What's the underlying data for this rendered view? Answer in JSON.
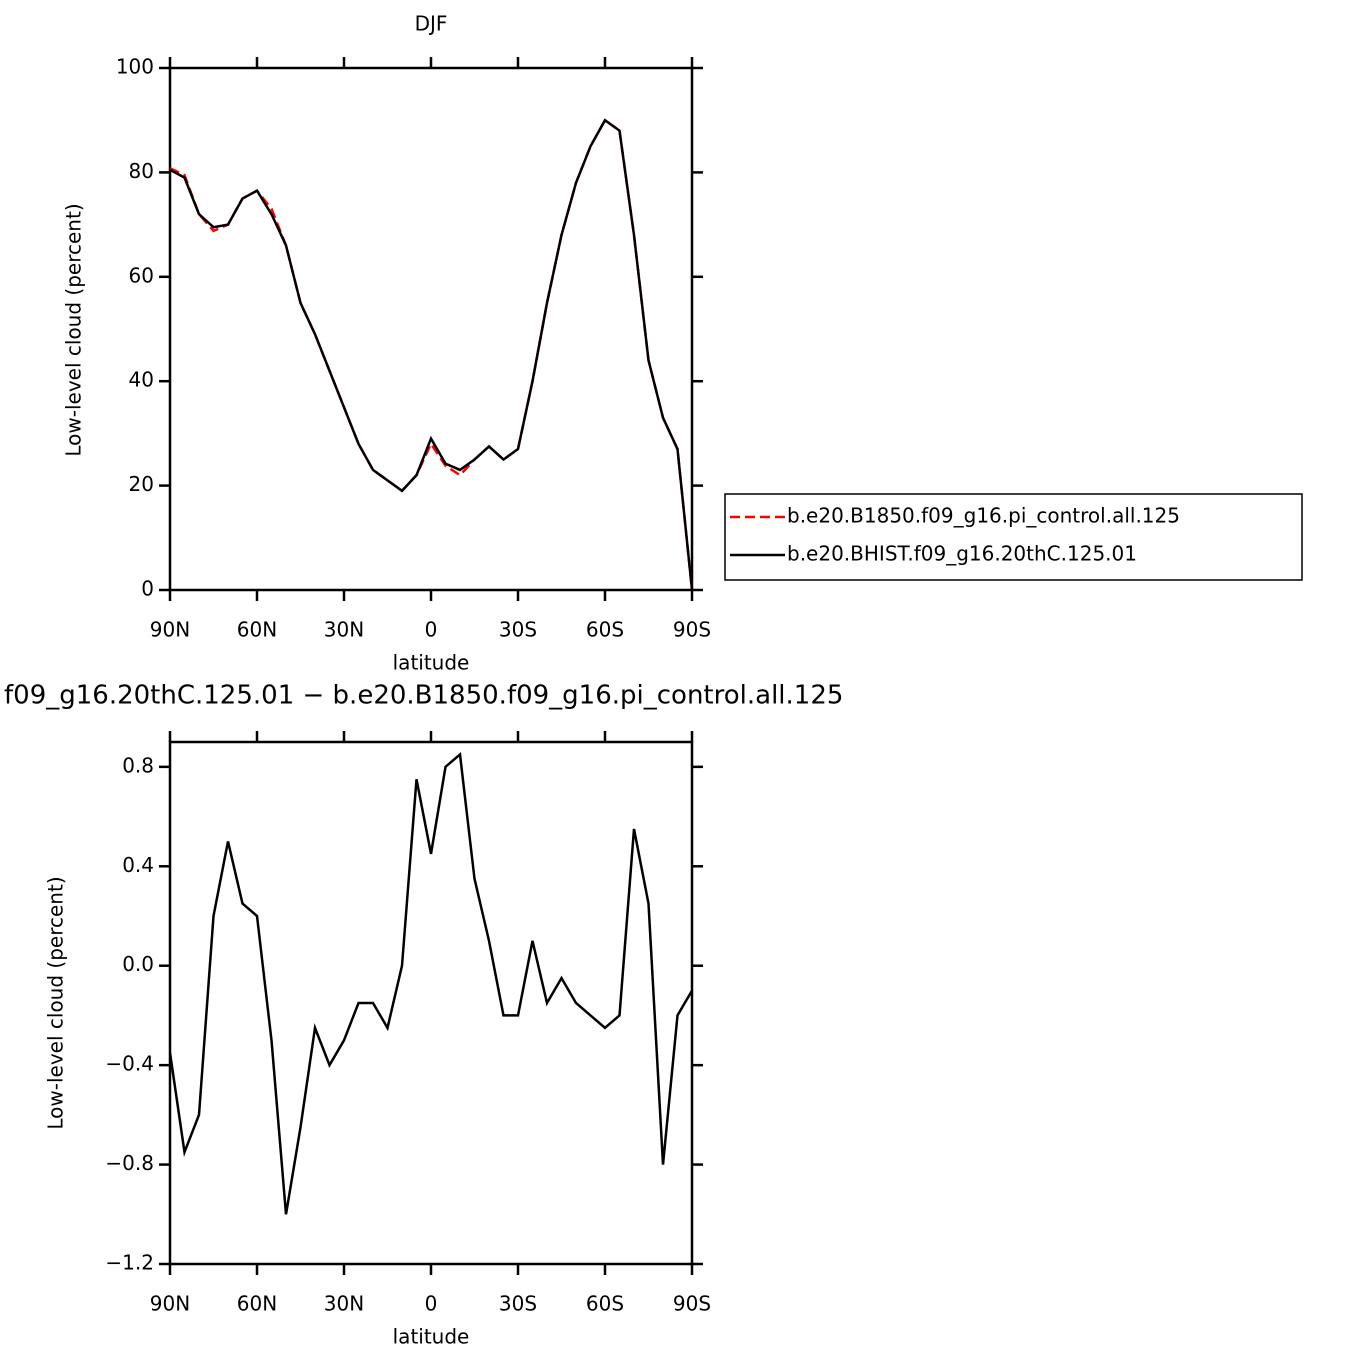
{
  "chart_data": [
    {
      "type": "line",
      "title": "DJF",
      "xlabel": "latitude",
      "ylabel": "Low-level cloud (percent)",
      "x": [
        90,
        85,
        80,
        75,
        70,
        65,
        60,
        55,
        50,
        45,
        40,
        35,
        30,
        25,
        20,
        15,
        10,
        5,
        0,
        -5,
        -10,
        -15,
        -20,
        -25,
        -30,
        -35,
        -40,
        -45,
        -50,
        -55,
        -60,
        -65,
        -70,
        -75,
        -80,
        -85,
        -90
      ],
      "xlim": [
        90,
        -90
      ],
      "xticks": [
        {
          "value": 90,
          "label": "90N"
        },
        {
          "value": 60,
          "label": "60N"
        },
        {
          "value": 30,
          "label": "30N"
        },
        0,
        {
          "value": -30,
          "label": "30S"
        },
        {
          "value": -60,
          "label": "60S"
        },
        {
          "value": -90,
          "label": "90S"
        }
      ],
      "ylim": [
        0,
        100
      ],
      "yticks": [
        0,
        20,
        40,
        60,
        80,
        100
      ],
      "legend": "right",
      "series": [
        {
          "name": "b.e20.B1850.f09_g16.pi_control.all.125",
          "color": "#ff0000",
          "dash": "dashed",
          "values": [
            80.8,
            79.5,
            72,
            68.8,
            70,
            75,
            76.5,
            73,
            66,
            55,
            49,
            42,
            35,
            28,
            23,
            21,
            19,
            22,
            28,
            23.8,
            22,
            25,
            27.5,
            25,
            27,
            40,
            55,
            68,
            78,
            85,
            90,
            88,
            68,
            44,
            33,
            27,
            0
          ]
        },
        {
          "name": "b.e20.BHIST.f09_g16.20thC.125.01",
          "color": "#000000",
          "dash": "solid",
          "values": [
            80.5,
            79,
            72,
            69.5,
            70,
            75,
            76.5,
            72,
            66,
            55,
            49,
            42,
            35,
            28,
            23,
            21,
            19,
            22,
            29,
            24.2,
            23,
            25,
            27.5,
            25,
            27,
            40,
            55,
            68,
            78,
            85,
            90,
            88,
            68,
            44,
            33,
            27,
            0
          ]
        }
      ]
    },
    {
      "type": "line",
      "title": "f09_g16.20thC.125.01  −  b.e20.B1850.f09_g16.pi_control.all.125",
      "xlabel": "latitude",
      "ylabel": "Low-level cloud (percent)",
      "x": [
        90,
        85,
        80,
        75,
        70,
        65,
        60,
        55,
        50,
        45,
        40,
        35,
        30,
        25,
        20,
        15,
        10,
        5,
        0,
        -5,
        -10,
        -15,
        -20,
        -25,
        -30,
        -35,
        -40,
        -45,
        -50,
        -55,
        -60,
        -65,
        -70,
        -75,
        -80,
        -85,
        -90
      ],
      "xlim": [
        90,
        -90
      ],
      "xticks": [
        {
          "value": 90,
          "label": "90N"
        },
        {
          "value": 60,
          "label": "60N"
        },
        {
          "value": 30,
          "label": "30N"
        },
        0,
        {
          "value": -30,
          "label": "30S"
        },
        {
          "value": -60,
          "label": "60S"
        },
        {
          "value": -90,
          "label": "90S"
        }
      ],
      "ylim": [
        -1.2,
        0.9
      ],
      "yticks": [
        {
          "value": -1.2,
          "label": "−1.2"
        },
        {
          "value": -0.8,
          "label": "−0.8"
        },
        {
          "value": -0.4,
          "label": "−0.4"
        },
        {
          "value": 0,
          "label": "0.0"
        },
        0.4,
        0.8
      ],
      "color": "#000000",
      "values": [
        -0.35,
        -0.75,
        -0.6,
        0.2,
        0.5,
        0.25,
        0.2,
        -0.3,
        -1.0,
        -0.65,
        -0.25,
        -0.4,
        -0.3,
        -0.15,
        -0.15,
        -0.25,
        0.0,
        0.75,
        0.45,
        0.8,
        0.85,
        0.35,
        0.1,
        -0.2,
        -0.2,
        0.1,
        -0.15,
        -0.05,
        -0.15,
        -0.2,
        -0.25,
        -0.2,
        0.55,
        0.25,
        -0.8,
        -0.2,
        -0.1
      ]
    }
  ]
}
